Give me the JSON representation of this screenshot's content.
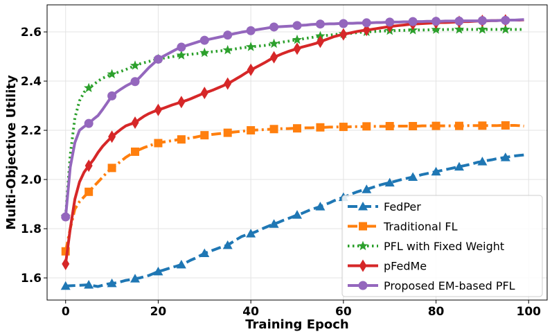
{
  "chart_data": {
    "type": "line",
    "xlabel": "Training Epoch",
    "ylabel": "Multi-Objective Utility",
    "xlim": [
      -4,
      104
    ],
    "ylim": [
      1.51,
      2.71
    ],
    "xticks": [
      0,
      20,
      40,
      60,
      80,
      100
    ],
    "yticks": [
      1.6,
      1.8,
      2.0,
      2.2,
      2.4,
      2.6
    ],
    "xtick_labels": [
      "0",
      "20",
      "40",
      "60",
      "80",
      "100"
    ],
    "ytick_labels": [
      "1.6",
      "1.8",
      "2.0",
      "2.2",
      "2.4",
      "2.6"
    ],
    "grid": true,
    "legend_position": "lower-right",
    "x": [
      0,
      1,
      2,
      3,
      4,
      5,
      6,
      7,
      8,
      9,
      10,
      11,
      12,
      13,
      14,
      15,
      16,
      17,
      18,
      19,
      20,
      21,
      22,
      23,
      24,
      25,
      26,
      27,
      28,
      29,
      30,
      31,
      32,
      33,
      34,
      35,
      36,
      37,
      38,
      39,
      40,
      41,
      42,
      43,
      44,
      45,
      46,
      47,
      48,
      49,
      50,
      51,
      52,
      53,
      54,
      55,
      56,
      57,
      58,
      59,
      60,
      61,
      62,
      63,
      64,
      65,
      66,
      67,
      68,
      69,
      70,
      71,
      72,
      73,
      74,
      75,
      76,
      77,
      78,
      79,
      80,
      81,
      82,
      83,
      84,
      85,
      86,
      87,
      88,
      89,
      90,
      91,
      92,
      93,
      94,
      95,
      96,
      97,
      98,
      99
    ],
    "series": [
      {
        "name": "FedPer",
        "color": "#1f77b4",
        "dash": "dashed",
        "marker": "triangle",
        "values": [
          1.567,
          1.568,
          1.569,
          1.57,
          1.571,
          1.572,
          1.568,
          1.565,
          1.57,
          1.575,
          1.578,
          1.58,
          1.585,
          1.59,
          1.593,
          1.597,
          1.6,
          1.605,
          1.61,
          1.618,
          1.626,
          1.631,
          1.637,
          1.643,
          1.648,
          1.654,
          1.662,
          1.672,
          1.68,
          1.69,
          1.7,
          1.707,
          1.714,
          1.721,
          1.727,
          1.733,
          1.745,
          1.757,
          1.768,
          1.775,
          1.78,
          1.787,
          1.796,
          1.804,
          1.812,
          1.819,
          1.826,
          1.834,
          1.841,
          1.848,
          1.856,
          1.862,
          1.87,
          1.878,
          1.884,
          1.89,
          1.898,
          1.905,
          1.914,
          1.921,
          1.928,
          1.935,
          1.943,
          1.95,
          1.956,
          1.96,
          1.966,
          1.972,
          1.978,
          1.983,
          1.987,
          1.992,
          1.997,
          2.002,
          2.006,
          2.01,
          2.015,
          2.02,
          2.024,
          2.028,
          2.032,
          2.036,
          2.04,
          2.044,
          2.048,
          2.052,
          2.056,
          2.06,
          2.065,
          2.07,
          2.073,
          2.077,
          2.08,
          2.084,
          2.087,
          2.09,
          2.093,
          2.096,
          2.098,
          2.1
        ]
      },
      {
        "name": "Traditional FL",
        "color": "#ff7f0e",
        "dash": "dashdot",
        "marker": "square",
        "values": [
          1.708,
          1.8,
          1.88,
          1.91,
          1.93,
          1.95,
          1.97,
          1.99,
          2.01,
          2.03,
          2.047,
          2.06,
          2.075,
          2.09,
          2.102,
          2.113,
          2.122,
          2.13,
          2.137,
          2.143,
          2.148,
          2.152,
          2.155,
          2.158,
          2.161,
          2.163,
          2.166,
          2.169,
          2.172,
          2.176,
          2.18,
          2.182,
          2.184,
          2.186,
          2.188,
          2.19,
          2.192,
          2.194,
          2.196,
          2.198,
          2.2,
          2.201,
          2.202,
          2.203,
          2.204,
          2.205,
          2.206,
          2.207,
          2.207,
          2.208,
          2.208,
          2.209,
          2.21,
          2.21,
          2.211,
          2.212,
          2.212,
          2.213,
          2.213,
          2.214,
          2.214,
          2.214,
          2.215,
          2.215,
          2.215,
          2.216,
          2.216,
          2.216,
          2.216,
          2.216,
          2.217,
          2.217,
          2.217,
          2.217,
          2.217,
          2.217,
          2.217,
          2.218,
          2.218,
          2.218,
          2.218,
          2.218,
          2.218,
          2.218,
          2.218,
          2.218,
          2.218,
          2.219,
          2.219,
          2.219,
          2.219,
          2.219,
          2.219,
          2.219,
          2.22,
          2.22,
          2.22,
          2.22,
          2.219,
          2.217
        ]
      },
      {
        "name": "PFL with Fixed Weight",
        "color": "#2ca02c",
        "dash": "dotted",
        "marker": "star",
        "values": [
          1.85,
          2.1,
          2.25,
          2.32,
          2.355,
          2.372,
          2.385,
          2.4,
          2.412,
          2.42,
          2.428,
          2.434,
          2.44,
          2.447,
          2.455,
          2.463,
          2.47,
          2.475,
          2.48,
          2.485,
          2.49,
          2.493,
          2.496,
          2.499,
          2.502,
          2.505,
          2.507,
          2.509,
          2.511,
          2.513,
          2.515,
          2.518,
          2.52,
          2.522,
          2.524,
          2.526,
          2.529,
          2.532,
          2.535,
          2.537,
          2.539,
          2.541,
          2.543,
          2.545,
          2.548,
          2.552,
          2.556,
          2.559,
          2.562,
          2.565,
          2.568,
          2.571,
          2.574,
          2.577,
          2.58,
          2.583,
          2.585,
          2.587,
          2.589,
          2.591,
          2.592,
          2.593,
          2.595,
          2.597,
          2.599,
          2.6,
          2.601,
          2.602,
          2.603,
          2.604,
          2.605,
          2.605,
          2.606,
          2.606,
          2.607,
          2.607,
          2.608,
          2.608,
          2.608,
          2.609,
          2.609,
          2.609,
          2.61,
          2.61,
          2.61,
          2.61,
          2.61,
          2.61,
          2.61,
          2.61,
          2.61,
          2.61,
          2.61,
          2.61,
          2.61,
          2.61,
          2.61,
          2.61,
          2.61,
          2.61
        ]
      },
      {
        "name": "pFedMe",
        "color": "#d62728",
        "dash": "solid",
        "marker": "diamond",
        "values": [
          1.657,
          1.8,
          1.92,
          1.99,
          2.03,
          2.056,
          2.08,
          2.11,
          2.135,
          2.155,
          2.174,
          2.19,
          2.205,
          2.218,
          2.225,
          2.231,
          2.245,
          2.258,
          2.268,
          2.276,
          2.283,
          2.289,
          2.296,
          2.303,
          2.309,
          2.315,
          2.321,
          2.328,
          2.336,
          2.344,
          2.352,
          2.358,
          2.365,
          2.373,
          2.381,
          2.39,
          2.4,
          2.411,
          2.422,
          2.434,
          2.446,
          2.455,
          2.465,
          2.475,
          2.486,
          2.497,
          2.505,
          2.513,
          2.52,
          2.526,
          2.532,
          2.538,
          2.543,
          2.548,
          2.553,
          2.56,
          2.567,
          2.574,
          2.581,
          2.586,
          2.59,
          2.594,
          2.598,
          2.602,
          2.605,
          2.608,
          2.61,
          2.613,
          2.616,
          2.619,
          2.622,
          2.624,
          2.626,
          2.628,
          2.63,
          2.632,
          2.633,
          2.634,
          2.635,
          2.636,
          2.637,
          2.638,
          2.638,
          2.639,
          2.64,
          2.641,
          2.642,
          2.642,
          2.643,
          2.644,
          2.645,
          2.645,
          2.646,
          2.646,
          2.647,
          2.647,
          2.648,
          2.648,
          2.648,
          2.649
        ]
      },
      {
        "name": "Proposed EM-based PFL",
        "color": "#9467bd",
        "dash": "solid",
        "marker": "circle",
        "values": [
          1.848,
          2.05,
          2.15,
          2.2,
          2.215,
          2.228,
          2.245,
          2.26,
          2.285,
          2.312,
          2.34,
          2.355,
          2.368,
          2.38,
          2.39,
          2.398,
          2.415,
          2.435,
          2.455,
          2.472,
          2.489,
          2.5,
          2.51,
          2.52,
          2.53,
          2.538,
          2.544,
          2.55,
          2.556,
          2.562,
          2.566,
          2.57,
          2.574,
          2.578,
          2.582,
          2.587,
          2.591,
          2.595,
          2.599,
          2.602,
          2.605,
          2.608,
          2.611,
          2.614,
          2.617,
          2.62,
          2.621,
          2.622,
          2.623,
          2.624,
          2.626,
          2.627,
          2.628,
          2.63,
          2.631,
          2.632,
          2.632,
          2.633,
          2.633,
          2.634,
          2.634,
          2.635,
          2.635,
          2.636,
          2.636,
          2.637,
          2.637,
          2.638,
          2.638,
          2.639,
          2.64,
          2.64,
          2.64,
          2.641,
          2.641,
          2.642,
          2.642,
          2.642,
          2.643,
          2.643,
          2.643,
          2.643,
          2.644,
          2.644,
          2.644,
          2.644,
          2.645,
          2.645,
          2.645,
          2.645,
          2.646,
          2.646,
          2.646,
          2.646,
          2.647,
          2.647,
          2.648,
          2.648,
          2.649,
          2.65
        ]
      }
    ]
  }
}
